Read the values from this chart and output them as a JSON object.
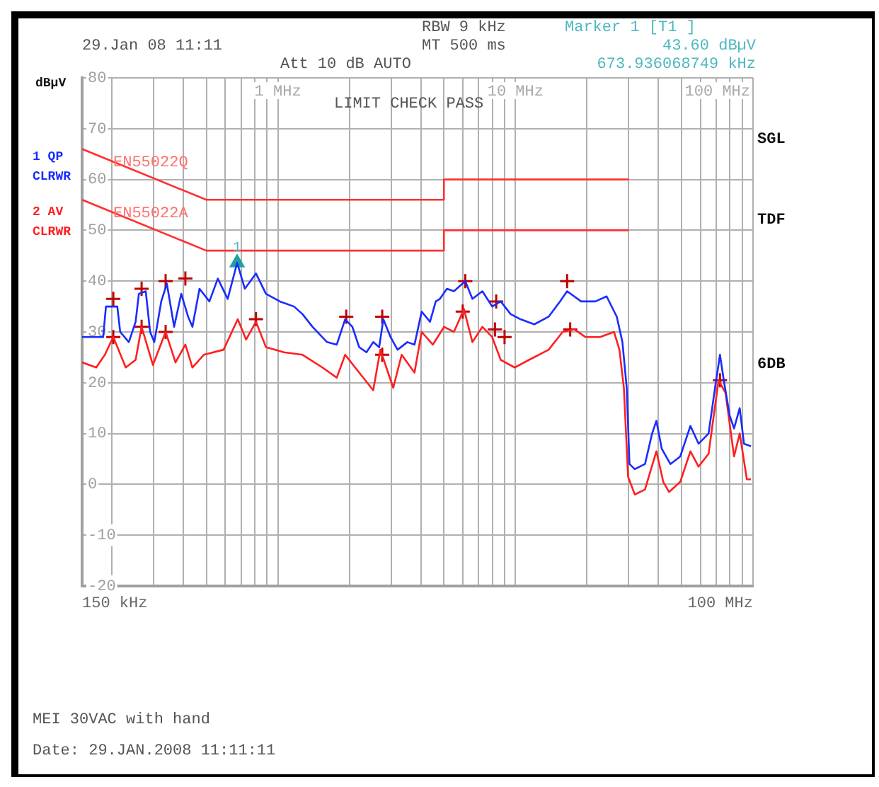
{
  "chart_data": {
    "type": "line",
    "ylabel": "dBµV",
    "xlim": [
      0.15,
      100
    ],
    "xticks": [
      {
        "value": 0.15,
        "label": null
      },
      {
        "value": 0.2,
        "label": null
      },
      {
        "value": 0.3,
        "label": null
      },
      {
        "value": 0.4,
        "label": null
      },
      {
        "value": 0.5,
        "label": null
      },
      {
        "value": 0.6,
        "label": null
      },
      {
        "value": 0.7,
        "label": null
      },
      {
        "value": 0.8,
        "label": null
      },
      {
        "value": 0.9,
        "label": null
      },
      {
        "value": 1,
        "label": "1 MHz"
      },
      {
        "value": 2,
        "label": null
      },
      {
        "value": 3,
        "label": null
      },
      {
        "value": 4,
        "label": null
      },
      {
        "value": 5,
        "label": null
      },
      {
        "value": 6,
        "label": null
      },
      {
        "value": 7,
        "label": null
      },
      {
        "value": 8,
        "label": null
      },
      {
        "value": 9,
        "label": null
      },
      {
        "value": 10,
        "label": "10 MHz"
      },
      {
        "value": 20,
        "label": null
      },
      {
        "value": 30,
        "label": null
      },
      {
        "value": 40,
        "label": null
      },
      {
        "value": 50,
        "label": null
      },
      {
        "value": 60,
        "label": null
      },
      {
        "value": 70,
        "label": null
      },
      {
        "value": 80,
        "label": null
      },
      {
        "value": 90,
        "label": null
      },
      {
        "value": 100,
        "label": "100 MHz"
      }
    ],
    "ylim": [
      -20,
      80
    ],
    "yticks": [
      -20,
      -10,
      0,
      10,
      20,
      30,
      40,
      50,
      60,
      70,
      80
    ],
    "log": "x",
    "grid": true,
    "legend": "left",
    "series": [
      {
        "name": "1 QP CLRWR",
        "color": "#1a2cff",
        "x": [
          0.15,
          0.184,
          0.189,
          0.211,
          0.217,
          0.236,
          0.252,
          0.26,
          0.278,
          0.29,
          0.302,
          0.323,
          0.341,
          0.366,
          0.392,
          0.419,
          0.437,
          0.468,
          0.515,
          0.559,
          0.615,
          0.674,
          0.726,
          0.809,
          0.891,
          1.02,
          1.17,
          1.27,
          1.4,
          1.61,
          1.77,
          1.92,
          2.06,
          2.2,
          2.36,
          2.52,
          2.67,
          2.78,
          2.98,
          3.19,
          3.51,
          3.76,
          4.03,
          4.37,
          4.62,
          4.81,
          5.15,
          5.51,
          6.15,
          6.59,
          7.26,
          7.98,
          8.67,
          9.55,
          10.5,
          12.0,
          13.8,
          15.4,
          16.5,
          18.9,
          21.7,
          24.2,
          26.7,
          28.2,
          29.4,
          29.8,
          30.2,
          31.8,
          35.1,
          37.6,
          39.2,
          41.3,
          44.9,
          49.4,
          54.5,
          59.0,
          65.0,
          69.7,
          72.6,
          75.6,
          79.8,
          83.2,
          87.9,
          91.6,
          98.0
        ],
        "values": [
          29,
          29,
          35,
          35,
          30,
          28,
          32,
          37.5,
          38,
          30,
          28,
          36,
          39.5,
          31,
          37.5,
          33,
          31,
          38.5,
          36,
          40.5,
          36.5,
          43.6,
          38.5,
          41.5,
          37.5,
          36,
          35,
          33.5,
          31,
          28,
          27.5,
          32.5,
          31,
          27,
          26,
          28,
          27,
          32.5,
          29,
          26.5,
          28,
          27.5,
          34,
          32,
          36,
          36.5,
          38.5,
          38,
          40,
          36.5,
          38,
          35,
          36,
          33.5,
          32.5,
          31.5,
          33,
          36,
          38,
          36,
          36,
          37,
          33,
          28,
          19,
          11.5,
          4,
          3,
          4,
          10,
          12.5,
          7,
          4,
          5.5,
          11.5,
          8,
          10,
          20,
          25.5,
          20,
          13.5,
          11,
          15,
          8,
          7.5
        ]
      },
      {
        "name": "2 AV CLRWR",
        "color": "#ff2020",
        "x": [
          0.15,
          0.172,
          0.187,
          0.203,
          0.229,
          0.252,
          0.267,
          0.298,
          0.337,
          0.371,
          0.408,
          0.437,
          0.488,
          0.591,
          0.678,
          0.735,
          0.809,
          0.891,
          1.06,
          1.27,
          1.54,
          1.77,
          1.92,
          2.2,
          2.52,
          2.7,
          3.06,
          3.32,
          3.76,
          4.03,
          4.49,
          5.01,
          5.51,
          6.07,
          6.59,
          7.26,
          7.98,
          8.67,
          9.93,
          11.4,
          13.8,
          15.8,
          17.7,
          19.7,
          22.7,
          26.0,
          27.4,
          28.6,
          29.8,
          31.8,
          35.1,
          39.2,
          41.9,
          44.3,
          49.4,
          54.5,
          59.0,
          65.0,
          71.6,
          76.6,
          83.2,
          87.9,
          94.2,
          98.0
        ],
        "values": [
          24,
          23,
          25.5,
          29,
          23,
          24.5,
          31,
          23.5,
          30,
          24,
          27.5,
          23,
          25.5,
          26.5,
          32.5,
          28.5,
          32,
          27,
          26,
          25.5,
          23,
          21,
          25.5,
          22,
          18.5,
          26.5,
          19,
          25.5,
          22,
          30,
          27.5,
          31,
          30,
          34.5,
          28,
          31,
          29,
          24.5,
          23,
          24.5,
          26.5,
          30,
          30.5,
          29,
          29,
          30,
          26.5,
          19,
          1.5,
          -2,
          -1,
          6.5,
          0.5,
          -1.5,
          0.5,
          6.5,
          3.5,
          6,
          20.5,
          18,
          5.5,
          10,
          1,
          1
        ]
      },
      {
        "name": "EN55022Q",
        "color": "#ff3030",
        "x": [
          0.15,
          0.5,
          5,
          5,
          30
        ],
        "values": [
          66,
          56,
          56,
          60,
          60
        ]
      },
      {
        "name": "EN55022A",
        "color": "#ff3030",
        "x": [
          0.15,
          0.5,
          5,
          5,
          30
        ],
        "values": [
          56,
          46,
          46,
          50,
          50
        ]
      },
      {
        "type": "scatter",
        "marker": "cross",
        "color": "#c00000",
        "x": [
          0.203,
          0.267,
          0.337,
          0.408,
          1.94,
          2.75,
          6.15,
          8.3,
          16.5
        ],
        "values": [
          36.5,
          38.5,
          40,
          40.5,
          33,
          33,
          40,
          36,
          40
        ]
      },
      {
        "type": "scatter",
        "marker": "cross",
        "color": "#c00000",
        "x": [
          0.203,
          0.267,
          0.337,
          0.809,
          2.75,
          6.0,
          8.2,
          9.0,
          17.0,
          72.6
        ],
        "values": [
          29,
          31,
          30,
          32.5,
          25.5,
          34,
          30.5,
          29,
          30.5,
          20.5
        ]
      },
      {
        "type": "scatter",
        "marker": "triangle",
        "color": "#20a0a0",
        "x": [
          0.674
        ],
        "values": [
          43.6
        ]
      }
    ],
    "annotations": [
      "29.Jan 08 11:11",
      "RBW 9 kHz",
      "MT 500 ms",
      "Att 10 dB AUTO",
      "Marker 1 [T1 ]",
      "43.60 dBµV",
      "673.936068749 kHz",
      "LIMIT CHECK PASS",
      "SGL",
      "TDF",
      "6DB",
      "MEI 30VAC with hand",
      "Date: 29.JAN.2008 11:11:11",
      "150 kHz",
      "100 MHz",
      {
        "text": "1",
        "x": 0.674,
        "y": 43.6
      }
    ]
  }
}
